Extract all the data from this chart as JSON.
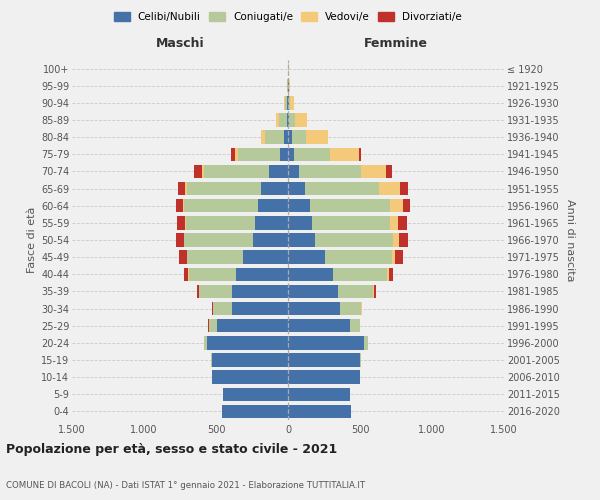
{
  "age_groups": [
    "0-4",
    "5-9",
    "10-14",
    "15-19",
    "20-24",
    "25-29",
    "30-34",
    "35-39",
    "40-44",
    "45-49",
    "50-54",
    "55-59",
    "60-64",
    "65-69",
    "70-74",
    "75-79",
    "80-84",
    "85-89",
    "90-94",
    "95-99",
    "100+"
  ],
  "birth_years": [
    "2016-2020",
    "2011-2015",
    "2006-2010",
    "2001-2005",
    "1996-2000",
    "1991-1995",
    "1986-1990",
    "1981-1985",
    "1976-1980",
    "1971-1975",
    "1966-1970",
    "1961-1965",
    "1956-1960",
    "1951-1955",
    "1946-1950",
    "1941-1945",
    "1936-1940",
    "1931-1935",
    "1926-1930",
    "1921-1925",
    "≤ 1920"
  ],
  "maschi": {
    "celibi": [
      460,
      450,
      530,
      530,
      560,
      490,
      390,
      390,
      360,
      310,
      240,
      230,
      210,
      190,
      130,
      55,
      30,
      10,
      5,
      3,
      2
    ],
    "coniugati": [
      0,
      0,
      0,
      5,
      20,
      60,
      130,
      230,
      330,
      390,
      480,
      480,
      510,
      510,
      450,
      290,
      130,
      55,
      15,
      3,
      1
    ],
    "vedovi": [
      0,
      0,
      0,
      0,
      0,
      0,
      0,
      1,
      2,
      3,
      5,
      8,
      10,
      15,
      20,
      20,
      25,
      15,
      5,
      1,
      0
    ],
    "divorziati": [
      0,
      0,
      0,
      0,
      1,
      3,
      5,
      10,
      30,
      55,
      55,
      55,
      45,
      50,
      55,
      30,
      5,
      2,
      1,
      0,
      0
    ]
  },
  "femmine": {
    "nubili": [
      440,
      430,
      500,
      500,
      530,
      430,
      360,
      350,
      310,
      260,
      190,
      165,
      155,
      120,
      75,
      40,
      25,
      10,
      5,
      4,
      2
    ],
    "coniugate": [
      0,
      0,
      0,
      5,
      25,
      70,
      150,
      240,
      380,
      460,
      540,
      540,
      550,
      510,
      430,
      250,
      100,
      40,
      10,
      2,
      1
    ],
    "vedove": [
      0,
      0,
      0,
      0,
      0,
      1,
      2,
      5,
      10,
      20,
      40,
      60,
      95,
      150,
      175,
      200,
      150,
      80,
      25,
      5,
      1
    ],
    "divorziate": [
      0,
      0,
      0,
      0,
      1,
      2,
      5,
      15,
      30,
      60,
      65,
      60,
      50,
      50,
      40,
      15,
      5,
      2,
      1,
      0,
      0
    ]
  },
  "colors": {
    "celibi": "#4472a8",
    "coniugati": "#b5c99a",
    "vedovi": "#f5c97a",
    "divorziati": "#c0312b"
  },
  "xlim": 1500,
  "title": "Popolazione per età, sesso e stato civile - 2021",
  "subtitle": "COMUNE DI BACOLI (NA) - Dati ISTAT 1° gennaio 2021 - Elaborazione TUTTITALIA.IT",
  "ylabel_left": "Fasce di età",
  "ylabel_right": "Anni di nascita",
  "xlabel_left": "Maschi",
  "xlabel_right": "Femmine",
  "background_color": "#f0f0f0",
  "xticks": [
    -1500,
    -1000,
    -500,
    0,
    500,
    1000,
    1500
  ],
  "xticklabels": [
    "1.500",
    "1.000",
    "500",
    "0",
    "500",
    "1.000",
    "1.500"
  ]
}
